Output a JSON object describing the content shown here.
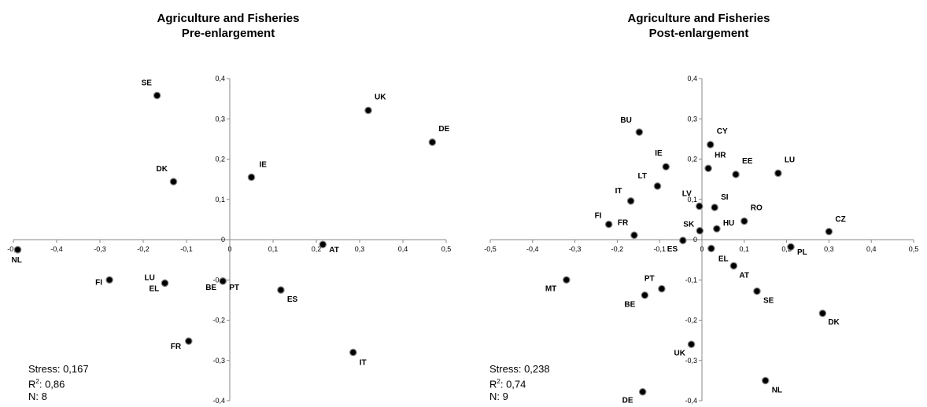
{
  "chart_data": [
    {
      "type": "scatter",
      "title": "Agriculture and Fisheries",
      "subtitle": "Pre-enlargement",
      "xlim": [
        -0.5,
        0.5
      ],
      "ylim": [
        -0.4,
        0.4
      ],
      "x_ticks": [
        "-0,5",
        "-0,4",
        "-0,3",
        "-0,2",
        "-0,1",
        "0",
        "0,1",
        "0,2",
        "0,3",
        "0,4",
        "0,5"
      ],
      "y_ticks": [
        "-0,4",
        "-0,3",
        "-0,2",
        "-0,1",
        "0",
        "0,1",
        "0,2",
        "0,3",
        "0,4"
      ],
      "points": [
        {
          "label": "SE",
          "x": -0.168,
          "y": 0.358
        },
        {
          "label": "UK",
          "x": 0.32,
          "y": 0.321
        },
        {
          "label": "DE",
          "x": 0.468,
          "y": 0.242
        },
        {
          "label": "IE",
          "x": 0.05,
          "y": 0.155
        },
        {
          "label": "DK",
          "x": -0.13,
          "y": 0.144
        },
        {
          "label": "AT",
          "x": 0.215,
          "y": -0.012
        },
        {
          "label": "NL",
          "x": -0.49,
          "y": -0.025
        },
        {
          "label": "FI",
          "x": -0.278,
          "y": -0.1
        },
        {
          "label": "LU",
          "x": -0.15,
          "y": -0.108
        },
        {
          "label": "EL",
          "x": -0.15,
          "y": -0.108
        },
        {
          "label": "BE",
          "x": -0.016,
          "y": -0.103
        },
        {
          "label": "PT",
          "x": -0.016,
          "y": -0.103
        },
        {
          "label": "ES",
          "x": 0.118,
          "y": -0.125
        },
        {
          "label": "FR",
          "x": -0.095,
          "y": -0.252
        },
        {
          "label": "IT",
          "x": 0.285,
          "y": -0.28
        }
      ],
      "stats": {
        "stress": "Stress: 0,167",
        "r2_label": "R",
        "r2_sup": "2",
        "r2_value": ": 0,86",
        "n": "N: 8"
      }
    },
    {
      "type": "scatter",
      "title": "Agriculture and Fisheries",
      "subtitle": "Post-enlargement",
      "xlim": [
        -0.5,
        0.5
      ],
      "ylim": [
        -0.4,
        0.4
      ],
      "x_ticks": [
        "-0,5",
        "-0,4",
        "-0,3",
        "-0,2",
        "-0,1",
        "0",
        "0,1",
        "0,2",
        "0,3",
        "0,4",
        "0,5"
      ],
      "y_ticks": [
        "-0,4",
        "-0,3",
        "-0,2",
        "-0,1",
        "0",
        "0,1",
        "0,2",
        "0,3",
        "0,4"
      ],
      "points": [
        {
          "label": "BU",
          "x": -0.148,
          "y": 0.267
        },
        {
          "label": "CY",
          "x": 0.02,
          "y": 0.236
        },
        {
          "label": "IE",
          "x": -0.085,
          "y": 0.181
        },
        {
          "label": "HR",
          "x": 0.015,
          "y": 0.177
        },
        {
          "label": "EE",
          "x": 0.08,
          "y": 0.162
        },
        {
          "label": "LU",
          "x": 0.18,
          "y": 0.165
        },
        {
          "label": "LT",
          "x": -0.105,
          "y": 0.133
        },
        {
          "label": "IT",
          "x": -0.168,
          "y": 0.096
        },
        {
          "label": "LV",
          "x": -0.006,
          "y": 0.083
        },
        {
          "label": "SI",
          "x": 0.03,
          "y": 0.08
        },
        {
          "label": "RO",
          "x": 0.1,
          "y": 0.046
        },
        {
          "label": "FI",
          "x": -0.22,
          "y": 0.038
        },
        {
          "label": "SK",
          "x": -0.005,
          "y": 0.022
        },
        {
          "label": "HU",
          "x": 0.035,
          "y": 0.027
        },
        {
          "label": "CZ",
          "x": 0.3,
          "y": 0.02
        },
        {
          "label": "FR",
          "x": -0.16,
          "y": 0.011
        },
        {
          "label": "ES",
          "x": -0.045,
          "y": -0.002
        },
        {
          "label": "EL",
          "x": 0.022,
          "y": -0.022
        },
        {
          "label": "PL",
          "x": 0.21,
          "y": -0.018
        },
        {
          "label": "AT",
          "x": 0.075,
          "y": -0.065
        },
        {
          "label": "MT",
          "x": -0.32,
          "y": -0.1
        },
        {
          "label": "PT",
          "x": -0.095,
          "y": -0.122
        },
        {
          "label": "BE",
          "x": -0.135,
          "y": -0.138
        },
        {
          "label": "SE",
          "x": 0.13,
          "y": -0.128
        },
        {
          "label": "DK",
          "x": 0.285,
          "y": -0.183
        },
        {
          "label": "UK",
          "x": -0.025,
          "y": -0.26
        },
        {
          "label": "NL",
          "x": 0.15,
          "y": -0.35
        },
        {
          "label": "DE",
          "x": -0.14,
          "y": -0.378
        }
      ],
      "stats": {
        "stress": "Stress: 0,238",
        "r2_label": "R",
        "r2_sup": "2",
        "r2_value": ": 0,74",
        "n": "N: 9"
      }
    }
  ]
}
